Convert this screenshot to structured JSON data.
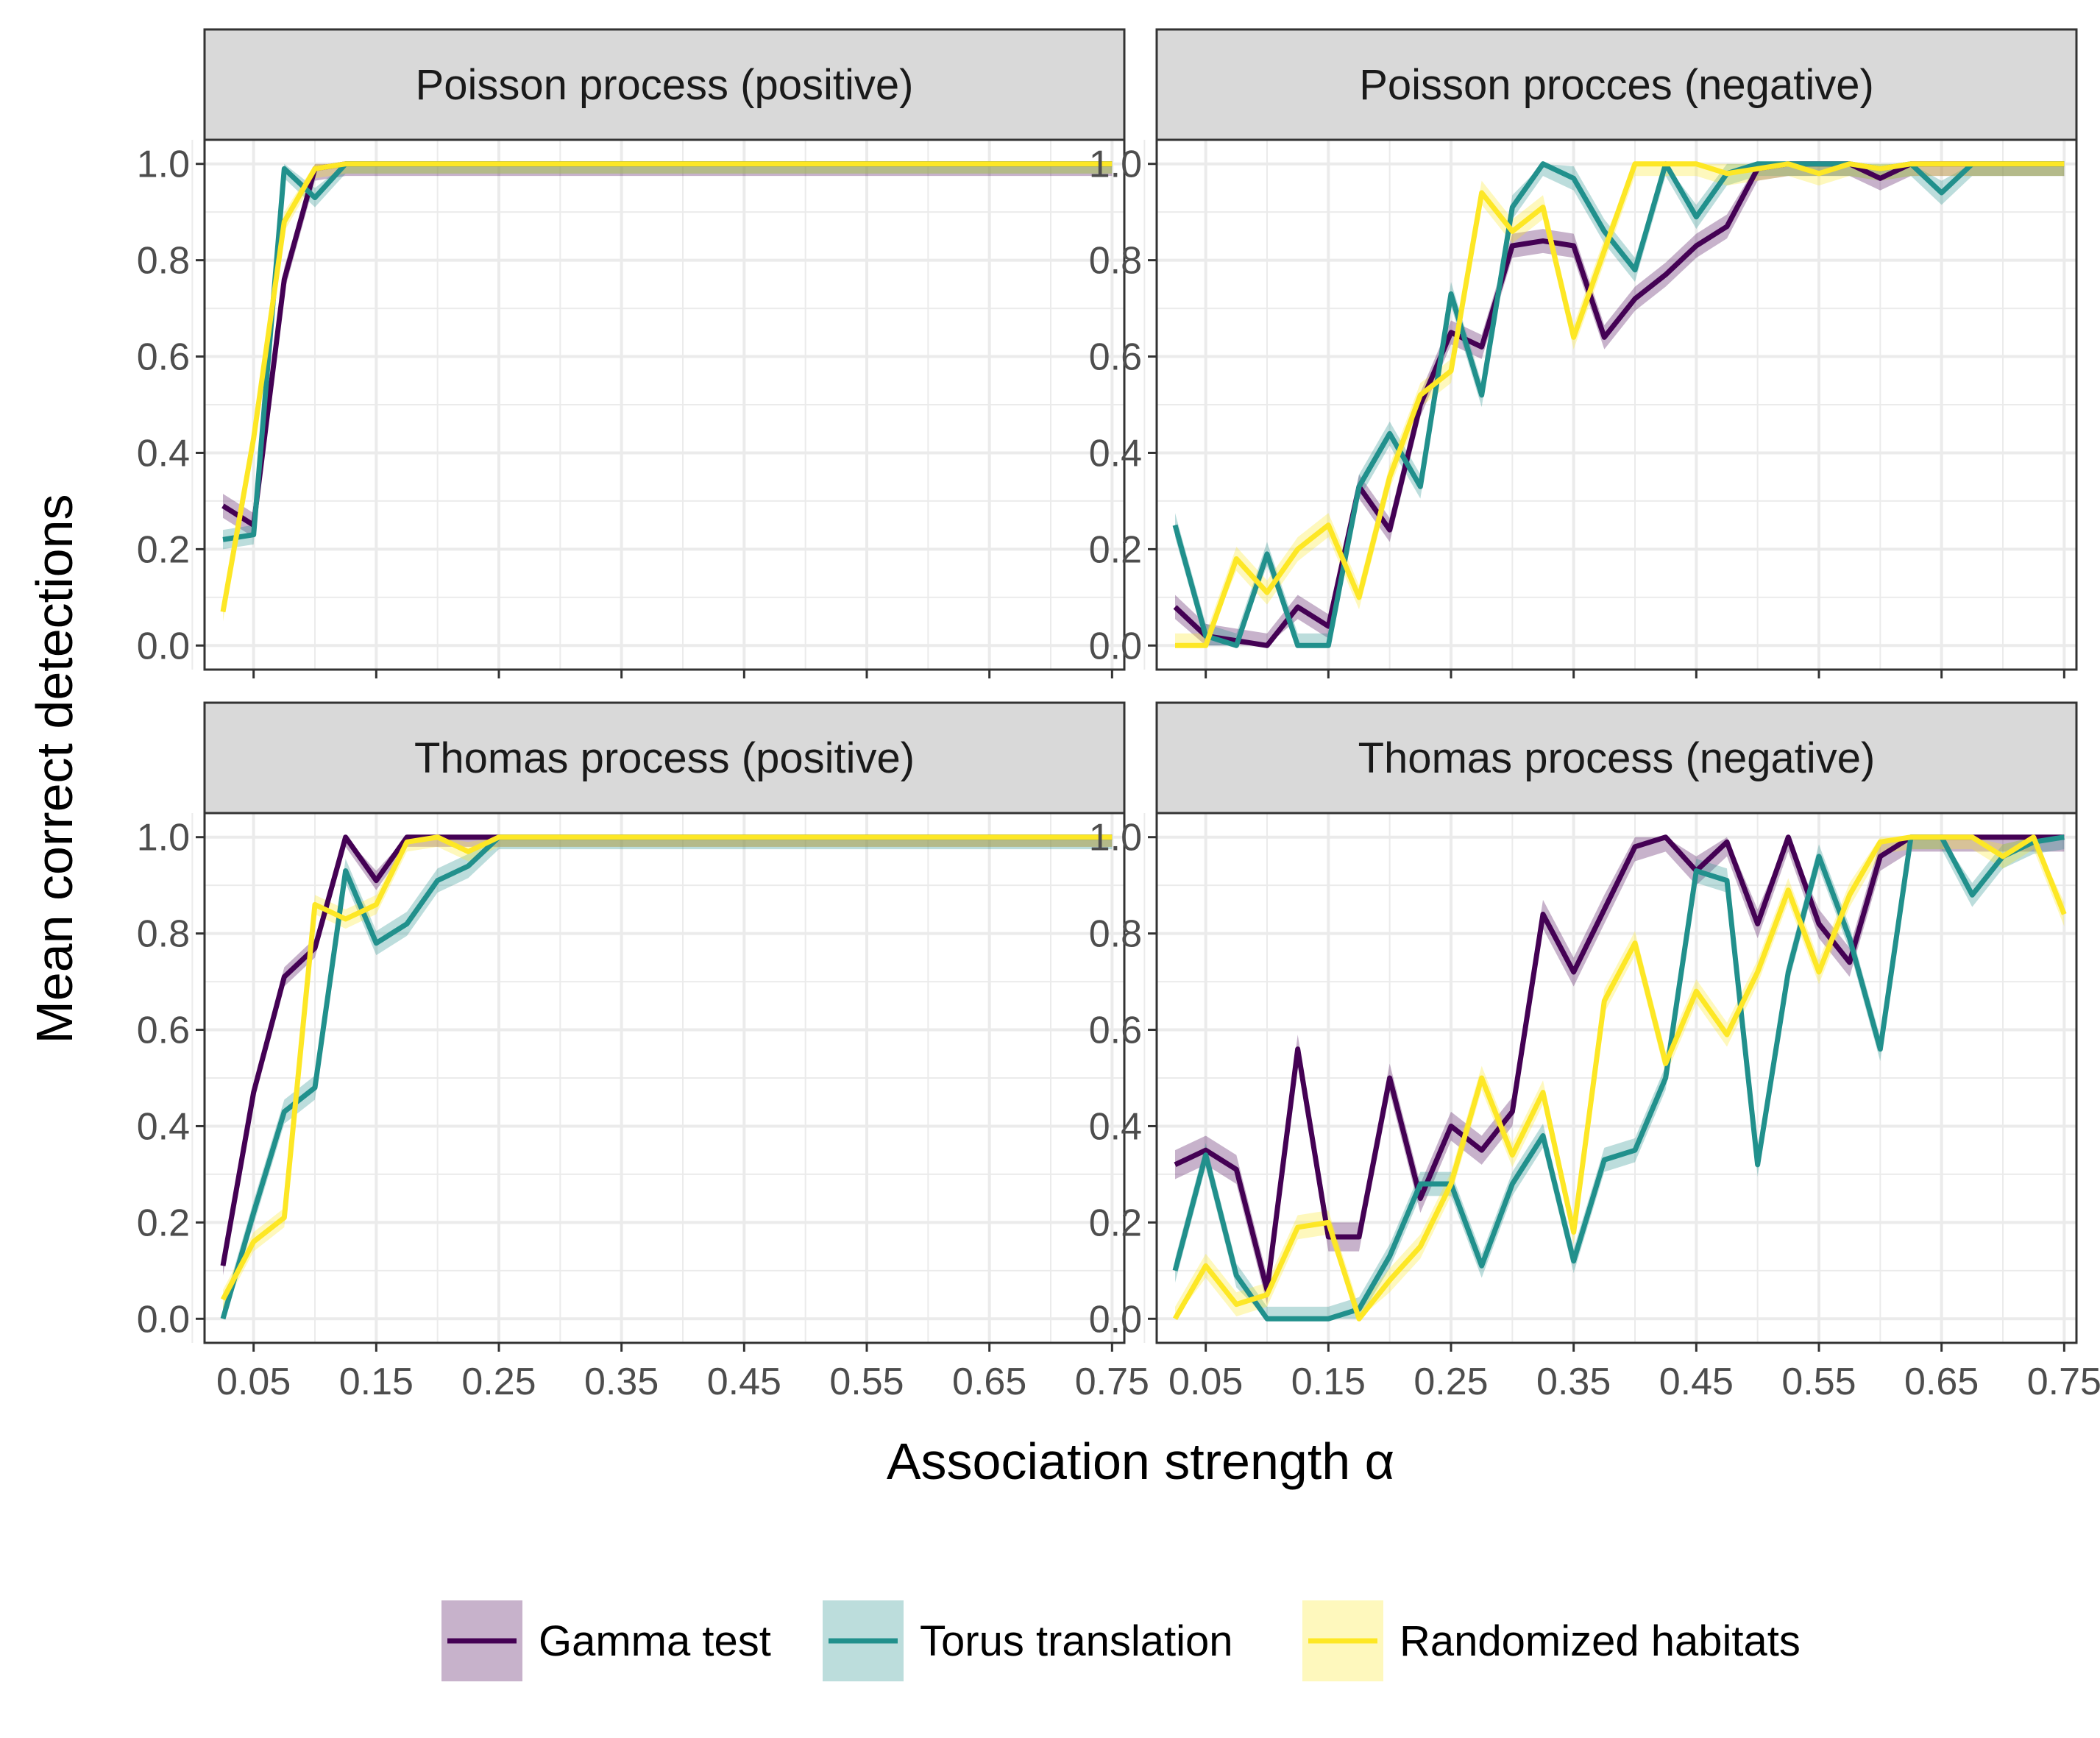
{
  "chart_data": {
    "type": "line",
    "xlabel": "Association strength α",
    "ylabel": "Mean correct detections",
    "xlim": [
      0.01,
      0.76
    ],
    "ylim": [
      -0.05,
      1.05
    ],
    "xticks": [
      0.05,
      0.15,
      0.25,
      0.35,
      0.45,
      0.55,
      0.65,
      0.75
    ],
    "xtick_labels": [
      "0.05",
      "0.15",
      "0.25",
      "0.35",
      "0.45",
      "0.55",
      "0.65",
      "0.75"
    ],
    "yticks": [
      0.0,
      0.2,
      0.4,
      0.6,
      0.8,
      1.0
    ],
    "ytick_labels": [
      "0.0",
      "0.2",
      "0.4",
      "0.6",
      "0.8",
      "1.0"
    ],
    "grid": true,
    "legend_position": "bottom",
    "x": [
      0.025,
      0.05,
      0.075,
      0.1,
      0.125,
      0.15,
      0.175,
      0.2,
      0.225,
      0.25,
      0.275,
      0.3,
      0.325,
      0.35,
      0.375,
      0.4,
      0.425,
      0.45,
      0.475,
      0.5,
      0.525,
      0.55,
      0.575,
      0.6,
      0.625,
      0.65,
      0.675,
      0.7,
      0.725,
      0.75
    ],
    "series_styles": [
      {
        "name": "Gamma test",
        "color": "#440154"
      },
      {
        "name": "Torus translation",
        "color": "#21908C"
      },
      {
        "name": "Randomized habitats",
        "color": "#FDE725"
      }
    ],
    "panels": [
      {
        "title": "Poisson process (positive)",
        "series": [
          {
            "name": "Gamma test",
            "values": [
              0.29,
              0.25,
              0.76,
              0.99,
              1,
              1,
              1,
              1,
              1,
              1,
              1,
              1,
              1,
              1,
              1,
              1,
              1,
              1,
              1,
              1,
              1,
              1,
              1,
              1,
              1,
              1,
              1,
              1,
              1,
              1
            ],
            "band": 0.025
          },
          {
            "name": "Torus translation",
            "values": [
              0.22,
              0.23,
              0.99,
              0.93,
              1,
              1,
              1,
              1,
              1,
              1,
              1,
              1,
              1,
              1,
              1,
              1,
              1,
              1,
              1,
              1,
              1,
              1,
              1,
              1,
              1,
              1,
              1,
              1,
              1,
              1
            ],
            "band": 0.02
          },
          {
            "name": "Randomized habitats",
            "values": [
              0.07,
              0.43,
              0.88,
              0.99,
              1,
              1,
              1,
              1,
              1,
              1,
              1,
              1,
              1,
              1,
              1,
              1,
              1,
              1,
              1,
              1,
              1,
              1,
              1,
              1,
              1,
              1,
              1,
              1,
              1,
              1
            ],
            "band": 0.02
          }
        ]
      },
      {
        "title": "Poisson procces (negative)",
        "series": [
          {
            "name": "Gamma test",
            "values": [
              0.08,
              0.02,
              0.01,
              0.0,
              0.08,
              0.04,
              0.33,
              0.24,
              0.5,
              0.65,
              0.62,
              0.83,
              0.84,
              0.83,
              0.64,
              0.72,
              0.77,
              0.83,
              0.87,
              0.99,
              1.0,
              1.0,
              1.0,
              0.97,
              1.0,
              1.0,
              1.0,
              1.0,
              1.0,
              1.0
            ],
            "band": 0.025
          },
          {
            "name": "Torus translation",
            "values": [
              0.25,
              0.02,
              0.0,
              0.19,
              0.0,
              0.0,
              0.33,
              0.44,
              0.33,
              0.73,
              0.52,
              0.91,
              1.0,
              0.97,
              0.86,
              0.78,
              1.0,
              0.89,
              0.98,
              1.0,
              1.0,
              1.0,
              1.0,
              0.99,
              1.0,
              0.94,
              1.0,
              1.0,
              1.0,
              1.0
            ],
            "band": 0.025
          },
          {
            "name": "Randomized habitats",
            "values": [
              0.0,
              0.0,
              0.18,
              0.11,
              0.2,
              0.25,
              0.1,
              0.35,
              0.52,
              0.57,
              0.94,
              0.86,
              0.91,
              0.64,
              0.82,
              1.0,
              1.0,
              1.0,
              0.98,
              0.99,
              1.0,
              0.98,
              1.0,
              0.99,
              1.0,
              1.0,
              1.0,
              1.0,
              1.0,
              1.0
            ],
            "band": 0.025
          }
        ]
      },
      {
        "title": "Thomas process (positive)",
        "series": [
          {
            "name": "Gamma test",
            "values": [
              0.11,
              0.47,
              0.71,
              0.77,
              1.0,
              0.91,
              1.0,
              1.0,
              1.0,
              1.0,
              1,
              1,
              1,
              1,
              1,
              1,
              1,
              1,
              1,
              1,
              1,
              1,
              1,
              1,
              1,
              1,
              1,
              1,
              1,
              1
            ],
            "band": 0.02
          },
          {
            "name": "Torus translation",
            "values": [
              0.0,
              0.22,
              0.43,
              0.48,
              0.93,
              0.78,
              0.82,
              0.91,
              0.94,
              1.0,
              1,
              1,
              1,
              1,
              1,
              1,
              1,
              1,
              1,
              1,
              1,
              1,
              1,
              1,
              1,
              1,
              1,
              1,
              1,
              1
            ],
            "band": 0.025
          },
          {
            "name": "Randomized habitats",
            "values": [
              0.04,
              0.16,
              0.21,
              0.86,
              0.83,
              0.86,
              0.99,
              1.0,
              0.97,
              1.0,
              1,
              1,
              1,
              1,
              1,
              1,
              1,
              1,
              1,
              1,
              1,
              1,
              1,
              1,
              1,
              1,
              1,
              1,
              1,
              1
            ],
            "band": 0.02
          }
        ]
      },
      {
        "title": "Thomas process (negative)",
        "series": [
          {
            "name": "Gamma test",
            "values": [
              0.32,
              0.35,
              0.31,
              0.06,
              0.56,
              0.17,
              0.17,
              0.5,
              0.25,
              0.4,
              0.35,
              0.43,
              0.84,
              0.72,
              0.85,
              0.98,
              1.0,
              0.93,
              0.99,
              0.82,
              1.0,
              0.82,
              0.74,
              0.96,
              1.0,
              1.0,
              1.0,
              1.0,
              1.0,
              1.0
            ],
            "band": 0.03
          },
          {
            "name": "Torus translation",
            "values": [
              0.1,
              0.34,
              0.09,
              0.0,
              0.0,
              0.0,
              0.02,
              0.13,
              0.28,
              0.28,
              0.11,
              0.28,
              0.38,
              0.12,
              0.33,
              0.35,
              0.5,
              0.93,
              0.91,
              0.32,
              0.72,
              0.96,
              0.79,
              0.56,
              1.0,
              1.0,
              0.88,
              0.96,
              0.99,
              1.0
            ],
            "band": 0.025
          },
          {
            "name": "Randomized habitats",
            "values": [
              0.0,
              0.11,
              0.03,
              0.05,
              0.19,
              0.2,
              0.0,
              0.08,
              0.15,
              0.28,
              0.5,
              0.34,
              0.47,
              0.18,
              0.66,
              0.78,
              0.53,
              0.68,
              0.59,
              0.72,
              0.89,
              0.72,
              0.88,
              0.99,
              1.0,
              1.0,
              1.0,
              0.96,
              1.0,
              0.84
            ],
            "band": 0.025
          }
        ]
      }
    ]
  }
}
